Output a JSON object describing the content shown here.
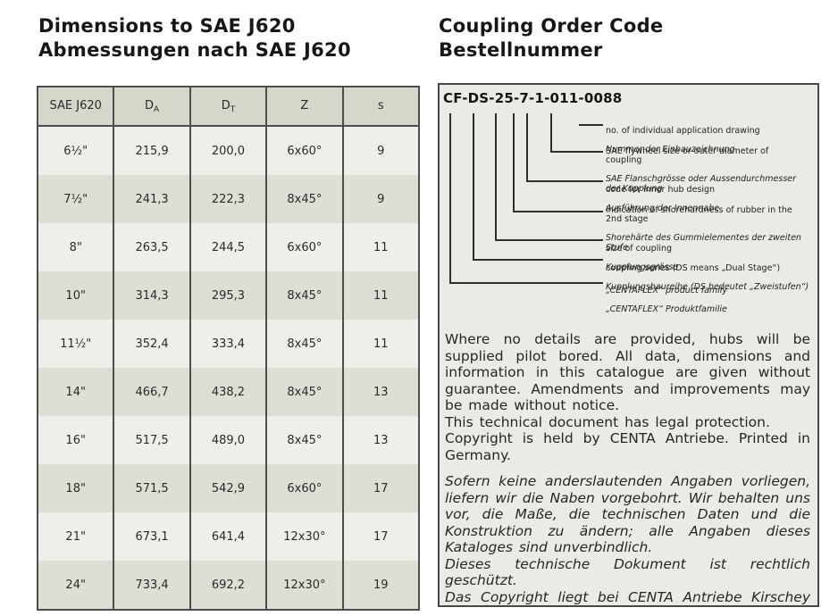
{
  "headings": {
    "left_line1": "Dimensions to SAE J620",
    "left_line2": "Abmessungen nach SAE J620",
    "right_line1": "Coupling Order Code",
    "right_line2": "Bestellnummer"
  },
  "table": {
    "columns": [
      {
        "label": "SAE J620",
        "sub": ""
      },
      {
        "label": "D",
        "sub": "A"
      },
      {
        "label": "D",
        "sub": "T"
      },
      {
        "label": "Z",
        "sub": ""
      },
      {
        "label": "s",
        "sub": ""
      }
    ],
    "rows": [
      [
        "6½\"",
        "215,9",
        "200,0",
        "6x60°",
        "9"
      ],
      [
        "7½\"",
        "241,3",
        "222,3",
        "8x45°",
        "9"
      ],
      [
        "8\"",
        "263,5",
        "244,5",
        "6x60°",
        "11"
      ],
      [
        "10\"",
        "314,3",
        "295,3",
        "8x45°",
        "11"
      ],
      [
        "11½\"",
        "352,4",
        "333,4",
        "8x45°",
        "11"
      ],
      [
        "14\"",
        "466,7",
        "438,2",
        "8x45°",
        "13"
      ],
      [
        "16\"",
        "517,5",
        "489,0",
        "8x45°",
        "13"
      ],
      [
        "18\"",
        "571,5",
        "542,9",
        "6x60°",
        "17"
      ],
      [
        "21\"",
        "673,1",
        "641,4",
        "12x30°",
        "17"
      ],
      [
        "24\"",
        "733,4",
        "692,2",
        "12x30°",
        "19"
      ]
    ]
  },
  "order_code": {
    "code": "CF-DS-25-7-1-011-0088",
    "labels": [
      {
        "en": "no. of individual application drawing",
        "de": "Nummer der Einbauzeichnung"
      },
      {
        "en": "SAE flywheel size or outer diameter of\ncoupling",
        "de": "SAE Flanschgrösse oder Aussendurchmesser\nder Kupplung"
      },
      {
        "en": "code for inner hub design",
        "de": "Ausführung der Innennabe"
      },
      {
        "en": "indication of shorehardness of rubber in the\n2nd stage",
        "de": "Shorehärte des Gummielementes der zweiten\nStufe"
      },
      {
        "en": "size of coupling",
        "de": "Kupplungsgrösse"
      },
      {
        "en": "coupling series (DS means „Dual Stage“)",
        "de": "Kupplungsbaureihe (DS bedeutet „Zweistufen“)"
      },
      {
        "en": "„CENTAFLEX“ product family",
        "de": "„CENTAFLEX“ Produktfamilie"
      }
    ]
  },
  "legal": {
    "en": [
      "Where no details are provided, hubs will be supplied pilot bored. All data, dimensions and information in this catalogue are given without guarantee. Amendments and improvements may be made without notice.",
      "This technical document has legal protection.",
      "Copyright is held by CENTA Antriebe. Printed in Germany."
    ],
    "de": [
      "Sofern keine anderslautenden Angaben vorliegen, liefern wir die Naben vorgebohrt. Wir behalten uns vor, die Maße, die technischen Daten und die Konstruktion zu ändern; alle Angaben dieses Kataloges sind unverbindlich.",
      "Dieses technische Dokument ist rechtlich geschützt.",
      "Das Copyright liegt bei CENTA Antriebe Kirschey GmbH."
    ]
  },
  "colors": {
    "table_header_bg": "#d4d8ca",
    "table_row_light": "#edf0e9",
    "table_row_dark": "#dce0d4",
    "order_box_bg": "#e9ece4",
    "border": "#4d4d4d"
  }
}
